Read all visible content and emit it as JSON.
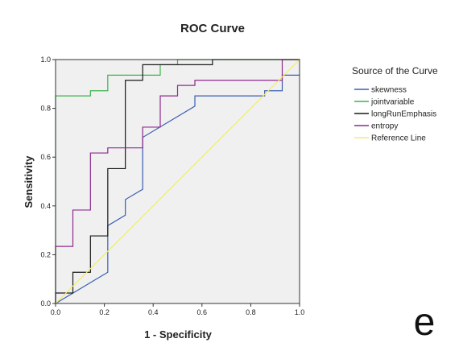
{
  "chart_data": {
    "type": "line",
    "title": "ROC Curve",
    "xlabel": "1 - Specificity",
    "ylabel": "Sensitivity",
    "xlim": [
      0,
      1
    ],
    "ylim": [
      0,
      1
    ],
    "x_ticks": [
      "0.0",
      "0.2",
      "0.4",
      "0.6",
      "0.8",
      "1.0"
    ],
    "y_ticks": [
      "0.0",
      "0.2",
      "0.4",
      "0.6",
      "0.8",
      "1.0"
    ],
    "grid": false,
    "legend_title": "Source of the Curve",
    "legend_position": "right",
    "plot_background": "#f0f0f0",
    "series": [
      {
        "name": "skewness",
        "color": "#3a5fb0",
        "x": [
          0,
          0.214,
          0.214,
          0.286,
          0.286,
          0.357,
          0.357,
          0.571,
          0.571,
          0.857,
          0.857,
          0.929,
          0.929,
          1.0
        ],
        "y": [
          0,
          0.128,
          0.319,
          0.362,
          0.426,
          0.468,
          0.681,
          0.809,
          0.851,
          0.851,
          0.872,
          0.872,
          0.936,
          0.936
        ]
      },
      {
        "name": "jointvariable",
        "color": "#3cb34a",
        "x": [
          0,
          0,
          0.143,
          0.143,
          0.214,
          0.214,
          0.429,
          0.429,
          0.5,
          0.5,
          1.0
        ],
        "y": [
          0,
          0.851,
          0.851,
          0.872,
          0.872,
          0.936,
          0.936,
          0.979,
          0.979,
          1.0,
          1.0
        ]
      },
      {
        "name": "longRunEmphasis",
        "color": "#1a1a1a",
        "x": [
          0,
          0,
          0.071,
          0.071,
          0.143,
          0.143,
          0.214,
          0.214,
          0.286,
          0.286,
          0.357,
          0.357,
          0.643,
          0.643,
          1.0
        ],
        "y": [
          0,
          0.043,
          0.043,
          0.128,
          0.128,
          0.277,
          0.277,
          0.553,
          0.553,
          0.915,
          0.915,
          0.979,
          0.979,
          1.0,
          1.0
        ]
      },
      {
        "name": "entropy",
        "color": "#8e2a8e",
        "x": [
          0,
          0,
          0.071,
          0.071,
          0.143,
          0.143,
          0.214,
          0.214,
          0.357,
          0.357,
          0.429,
          0.429,
          0.5,
          0.5,
          0.571,
          0.571,
          0.929,
          0.929,
          1.0
        ],
        "y": [
          0,
          0.234,
          0.234,
          0.383,
          0.383,
          0.617,
          0.617,
          0.638,
          0.638,
          0.723,
          0.723,
          0.851,
          0.851,
          0.894,
          0.894,
          0.915,
          0.915,
          1.0,
          1.0
        ]
      },
      {
        "name": "Reference Line",
        "color": "#f2ea78",
        "x": [
          0,
          1
        ],
        "y": [
          0,
          1
        ]
      }
    ]
  },
  "panel_letter": "e"
}
